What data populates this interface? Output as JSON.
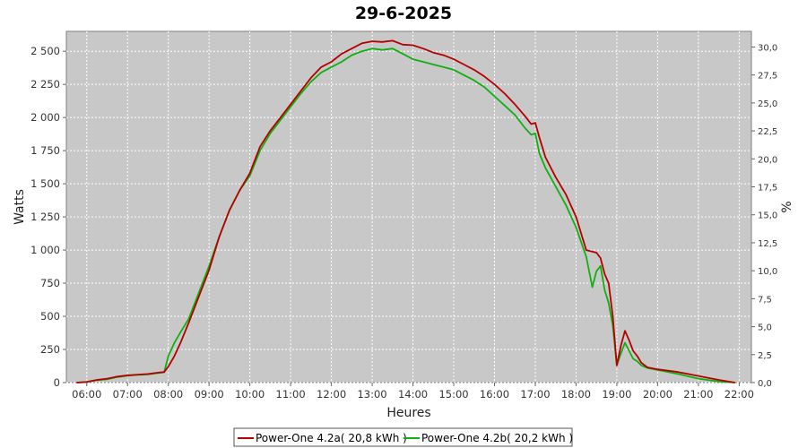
{
  "chart_data": {
    "type": "line",
    "title": "29-6-2025",
    "xlabel": "Heures",
    "ylabel": "Watts",
    "y2label": "%",
    "xlim": [
      5.5,
      22.3
    ],
    "ylim": [
      0,
      2650
    ],
    "y2lim": [
      0,
      31.4
    ],
    "x_ticks": [
      "06:00",
      "07:00",
      "08:00",
      "09:00",
      "10:00",
      "11:00",
      "12:00",
      "13:00",
      "14:00",
      "15:00",
      "16:00",
      "17:00",
      "18:00",
      "19:00",
      "20:00",
      "21:00",
      "22:00"
    ],
    "y_ticks": [
      {
        "value": 0,
        "label": "0"
      },
      {
        "value": 250,
        "label": "250"
      },
      {
        "value": 500,
        "label": "500"
      },
      {
        "value": 750,
        "label": "750"
      },
      {
        "value": 1000,
        "label": "1 000"
      },
      {
        "value": 1250,
        "label": "1 250"
      },
      {
        "value": 1500,
        "label": "1 500"
      },
      {
        "value": 1750,
        "label": "1 750"
      },
      {
        "value": 2000,
        "label": "2 000"
      },
      {
        "value": 2250,
        "label": "2 250"
      },
      {
        "value": 2500,
        "label": "2 500"
      }
    ],
    "y2_ticks": [
      "0,0",
      "2,5",
      "5,0",
      "7,5",
      "10,0",
      "12,5",
      "15,0",
      "17,5",
      "20,0",
      "22,5",
      "25,0",
      "27,5",
      "30,0"
    ],
    "grid": true,
    "legend_position": "bottom",
    "series": [
      {
        "name": "Power-One 4.2a( 20,8 kWh )",
        "color": "#b30000",
        "x": [
          5.75,
          6.0,
          6.25,
          6.5,
          6.75,
          7.0,
          7.25,
          7.5,
          7.75,
          7.9,
          8.0,
          8.15,
          8.3,
          8.5,
          8.75,
          9.0,
          9.25,
          9.5,
          9.75,
          10.0,
          10.25,
          10.5,
          10.75,
          11.0,
          11.25,
          11.5,
          11.75,
          12.0,
          12.25,
          12.5,
          12.75,
          13.0,
          13.25,
          13.5,
          13.75,
          14.0,
          14.25,
          14.5,
          14.75,
          15.0,
          15.25,
          15.5,
          15.75,
          16.0,
          16.25,
          16.5,
          16.75,
          16.9,
          17.0,
          17.1,
          17.25,
          17.5,
          17.75,
          18.0,
          18.25,
          18.5,
          18.6,
          18.7,
          18.8,
          18.9,
          19.0,
          19.1,
          19.2,
          19.3,
          19.4,
          19.5,
          19.6,
          19.75,
          20.0,
          20.5,
          21.0,
          21.5,
          21.9
        ],
        "values": [
          0,
          5,
          20,
          30,
          45,
          55,
          60,
          65,
          75,
          80,
          120,
          200,
          300,
          450,
          650,
          850,
          1100,
          1300,
          1450,
          1580,
          1780,
          1900,
          2000,
          2100,
          2200,
          2300,
          2380,
          2420,
          2480,
          2520,
          2560,
          2575,
          2570,
          2580,
          2550,
          2545,
          2520,
          2490,
          2470,
          2440,
          2400,
          2360,
          2310,
          2250,
          2180,
          2100,
          2010,
          1950,
          1960,
          1850,
          1700,
          1550,
          1420,
          1250,
          1000,
          980,
          940,
          820,
          750,
          500,
          130,
          280,
          390,
          320,
          240,
          200,
          150,
          115,
          100,
          80,
          50,
          20,
          0
        ]
      },
      {
        "name": "Power-One 4.2b( 20,2 kWh )",
        "color": "#10b010",
        "x": [
          5.75,
          6.0,
          6.25,
          6.5,
          6.75,
          7.0,
          7.25,
          7.5,
          7.75,
          7.9,
          8.0,
          8.15,
          8.3,
          8.5,
          8.75,
          9.0,
          9.25,
          9.5,
          9.75,
          10.0,
          10.25,
          10.5,
          10.75,
          11.0,
          11.25,
          11.5,
          11.75,
          12.0,
          12.25,
          12.5,
          12.75,
          13.0,
          13.25,
          13.5,
          13.75,
          14.0,
          14.25,
          14.5,
          14.75,
          15.0,
          15.25,
          15.5,
          15.75,
          16.0,
          16.25,
          16.5,
          16.75,
          16.9,
          17.0,
          17.1,
          17.25,
          17.5,
          17.75,
          18.0,
          18.25,
          18.4,
          18.5,
          18.6,
          18.7,
          18.8,
          18.9,
          19.0,
          19.1,
          19.2,
          19.3,
          19.4,
          19.5,
          19.6,
          19.75,
          20.0,
          20.5,
          21.0,
          21.5,
          21.9
        ],
        "values": [
          0,
          5,
          18,
          25,
          42,
          52,
          58,
          62,
          72,
          78,
          200,
          300,
          380,
          480,
          680,
          880,
          1100,
          1300,
          1450,
          1560,
          1750,
          1880,
          1980,
          2080,
          2180,
          2270,
          2340,
          2380,
          2420,
          2470,
          2500,
          2520,
          2510,
          2520,
          2480,
          2440,
          2420,
          2400,
          2380,
          2360,
          2320,
          2280,
          2230,
          2160,
          2090,
          2020,
          1920,
          1870,
          1880,
          1730,
          1620,
          1480,
          1340,
          1170,
          950,
          720,
          840,
          880,
          700,
          600,
          430,
          130,
          220,
          300,
          240,
          180,
          160,
          130,
          110,
          95,
          65,
          30,
          8,
          0
        ]
      }
    ]
  }
}
